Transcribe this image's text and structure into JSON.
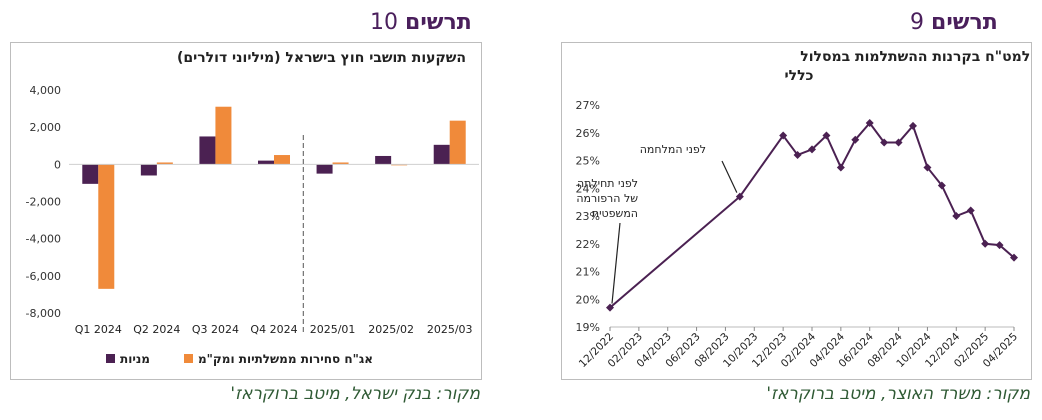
{
  "figures": {
    "left": {
      "label": "תרשים",
      "number": "10",
      "source": "מקור: בנק ישראל, מיטב ברוקראז'"
    },
    "right": {
      "label": "תרשים",
      "number": "9",
      "source": "מקור: משרד האוצר, מיטב ברוקראז'"
    }
  },
  "colors": {
    "purple": "#4b2152",
    "orange": "#f08a3a",
    "line": "#4b2152",
    "title": "#4a1f5c",
    "source": "#2f5a34"
  },
  "chart_data": [
    {
      "type": "bar",
      "title": "השקעות תושבי חוץ בישראל (מיליוני דולרים)",
      "categories": [
        "Q1 2024",
        "Q2 2024",
        "Q3 2024",
        "Q4 2024",
        "2025/01",
        "2025/02",
        "2025/03"
      ],
      "y_ticks": [
        "4,000",
        "2,000",
        "0",
        "-2,000",
        "-4,000",
        "-6,000",
        "-8,000"
      ],
      "ylim": [
        -8000,
        4000
      ],
      "series": [
        {
          "name": "מניות",
          "values": [
            -1050,
            -600,
            1500,
            200,
            -500,
            450,
            1050
          ]
        },
        {
          "name": "אג\"ח סחירות ממשלתיות ומק\"מ",
          "values": [
            -6700,
            100,
            3100,
            500,
            100,
            -50,
            2350
          ]
        }
      ],
      "divider_after_category": "Q4 2024",
      "legend_position": "bottom"
    },
    {
      "type": "line",
      "title_lines": [
        "חשיפת נטו למט\"ח בקרנות ההשתלמות במסלול",
        "כללי"
      ],
      "y_ticks": [
        "27%",
        "26%",
        "25%",
        "24%",
        "23%",
        "22%",
        "21%",
        "20%",
        "19%"
      ],
      "ylim": [
        19,
        27
      ],
      "x_ticks": [
        "12/2022",
        "02/2023",
        "04/2023",
        "06/2023",
        "08/2023",
        "10/2023",
        "12/2023",
        "02/2024",
        "04/2024",
        "06/2024",
        "08/2024",
        "10/2024",
        "12/2024",
        "02/2025",
        "04/2025"
      ],
      "x_range": [
        "2022-12",
        "2025-04"
      ],
      "points": [
        {
          "x": "2022-12",
          "y": 19.7
        },
        {
          "x": "2023-09",
          "y": 23.7
        },
        {
          "x": "2023-12",
          "y": 25.9
        },
        {
          "x": "2024-01",
          "y": 25.2
        },
        {
          "x": "2024-02",
          "y": 25.4
        },
        {
          "x": "2024-03",
          "y": 25.9
        },
        {
          "x": "2024-04",
          "y": 24.75
        },
        {
          "x": "2024-05",
          "y": 25.75
        },
        {
          "x": "2024-06",
          "y": 26.35
        },
        {
          "x": "2024-07",
          "y": 25.65
        },
        {
          "x": "2024-08",
          "y": 25.65
        },
        {
          "x": "2024-09",
          "y": 26.25
        },
        {
          "x": "2024-10",
          "y": 24.75
        },
        {
          "x": "2024-11",
          "y": 24.1
        },
        {
          "x": "2024-12",
          "y": 23.0
        },
        {
          "x": "2025-01",
          "y": 23.2
        },
        {
          "x": "2025-02",
          "y": 22.0
        },
        {
          "x": "2025-03",
          "y": 21.95
        },
        {
          "x": "2025-04",
          "y": 21.5
        }
      ],
      "annotations": [
        {
          "text": "לפני המלחמה",
          "target": "2023-09"
        },
        {
          "text_lines": [
            "לפני תחילתה",
            "של הרפורמה",
            "המשפטית"
          ],
          "target": "2022-12"
        }
      ]
    }
  ]
}
